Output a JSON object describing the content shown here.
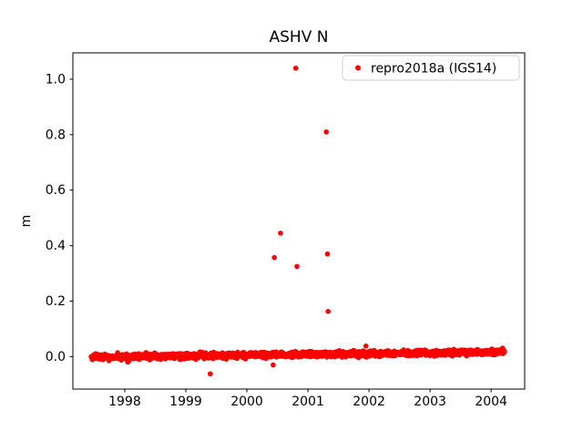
{
  "chart_data": {
    "type": "scatter",
    "title": "ASHV N",
    "xlabel": "",
    "ylabel": "m",
    "xlim": [
      1997.15,
      2004.55
    ],
    "ylim": [
      -0.117,
      1.095
    ],
    "xticks": [
      1998,
      1999,
      2000,
      2001,
      2002,
      2003,
      2004
    ],
    "yticks": [
      0.0,
      0.2,
      0.4,
      0.6,
      0.8,
      1.0
    ],
    "grid": "off",
    "series_color": "#ff0000",
    "marker": "dot",
    "legend": {
      "label": "repro2018a (IGS14)",
      "position": "upper right"
    },
    "baseline_band": {
      "description": "dense near-zero scatter band",
      "x_start": 1997.45,
      "x_end": 2004.22,
      "y_start": -0.002,
      "y_end": 0.017,
      "noise_sd": 0.005,
      "n_points": 1600
    },
    "outliers": [
      [
        2000.8,
        1.04
      ],
      [
        2001.3,
        0.81
      ],
      [
        2000.55,
        0.445
      ],
      [
        2000.45,
        0.357
      ],
      [
        2000.82,
        0.325
      ],
      [
        2001.32,
        0.37
      ],
      [
        2001.33,
        0.163
      ],
      [
        2001.95,
        0.038
      ],
      [
        2000.43,
        -0.03
      ],
      [
        1999.4,
        -0.062
      ],
      [
        1998.05,
        -0.02
      ]
    ]
  }
}
